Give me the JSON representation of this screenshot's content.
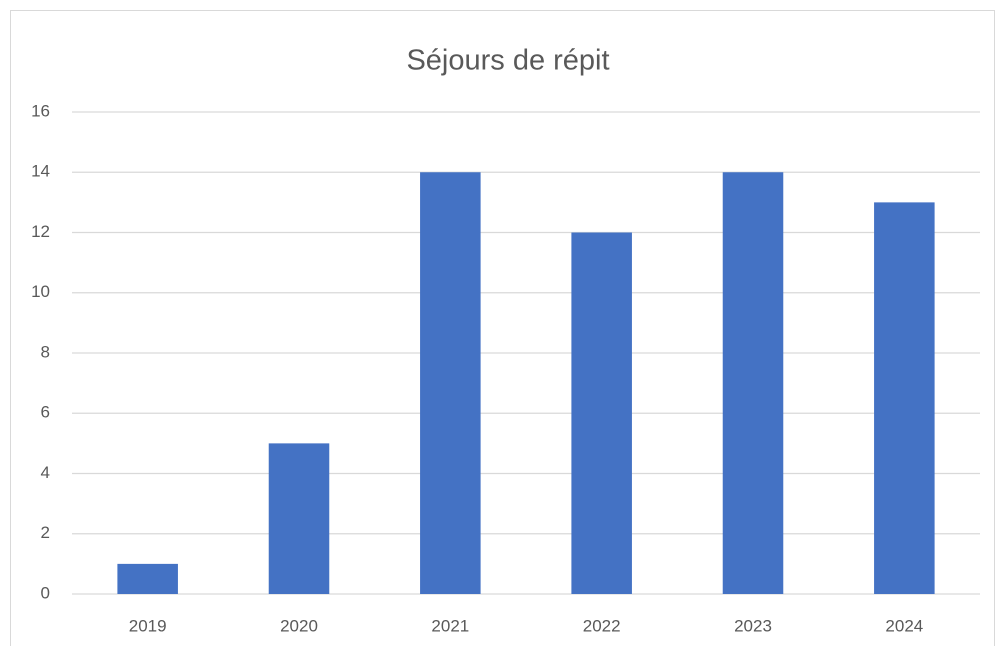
{
  "chart_data": {
    "type": "bar",
    "title": "Séjours de répit",
    "categories": [
      "2019",
      "2020",
      "2021",
      "2022",
      "2023",
      "2024"
    ],
    "values": [
      1,
      5,
      14,
      12,
      14,
      13
    ],
    "color": "#4472c4",
    "ylim": [
      0,
      16
    ],
    "yticks": [
      0,
      2,
      4,
      6,
      8,
      10,
      12,
      14,
      16
    ],
    "grid": true
  }
}
